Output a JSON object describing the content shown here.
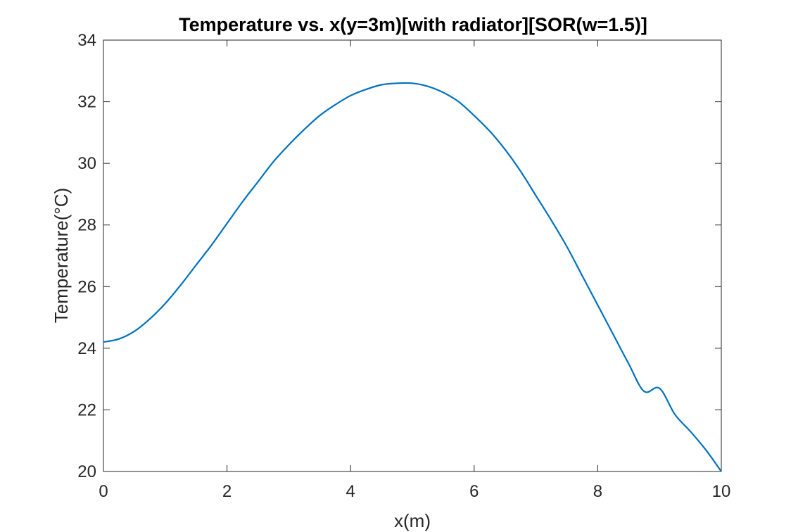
{
  "chart_data": {
    "type": "line",
    "title": "Temperature vs. x(y=3m)[with radiator][SOR(w=1.5)]",
    "xlabel": "x(m)",
    "ylabel": "Temperature(°C)",
    "xlim": [
      0,
      10
    ],
    "ylim": [
      20,
      34
    ],
    "xticks": [
      0,
      2,
      4,
      6,
      8,
      10
    ],
    "yticks": [
      20,
      22,
      24,
      26,
      28,
      30,
      32,
      34
    ],
    "xtick_labels": [
      "0",
      "2",
      "4",
      "6",
      "8",
      "10"
    ],
    "ytick_labels": [
      "20",
      "22",
      "24",
      "26",
      "28",
      "30",
      "32",
      "34"
    ],
    "grid": false,
    "box": true,
    "series": [
      {
        "color": "#0072BD",
        "x": [
          0,
          0.25,
          0.5,
          0.75,
          1,
          1.25,
          1.5,
          1.75,
          2,
          2.25,
          2.5,
          2.75,
          3,
          3.25,
          3.5,
          3.75,
          4,
          4.25,
          4.5,
          4.75,
          5,
          5.25,
          5.5,
          5.75,
          6,
          6.25,
          6.5,
          6.75,
          7,
          7.25,
          7.5,
          7.75,
          8,
          8.25,
          8.5,
          8.75,
          9,
          9.25,
          9.5,
          9.75,
          10
        ],
        "y": [
          24.2,
          24.3,
          24.55,
          24.95,
          25.45,
          26.05,
          26.7,
          27.35,
          28.05,
          28.75,
          29.4,
          30.05,
          30.6,
          31.1,
          31.55,
          31.9,
          32.2,
          32.4,
          32.55,
          32.6,
          32.6,
          32.5,
          32.3,
          32.0,
          31.55,
          31.05,
          30.45,
          29.75,
          28.95,
          28.15,
          27.3,
          26.35,
          25.4,
          24.45,
          23.5,
          22.6,
          22.7,
          21.85,
          21.3,
          20.7,
          20.0
        ]
      }
    ]
  }
}
